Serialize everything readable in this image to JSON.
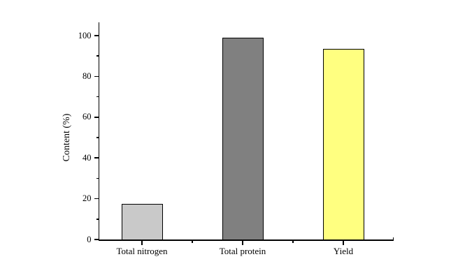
{
  "chart_data": {
    "type": "bar",
    "categories": [
      "Total nitrogen",
      "Total protein",
      "Yield"
    ],
    "values": [
      17.3,
      99,
      93.5
    ],
    "bar_colors": [
      "#c9c9c9",
      "#808080",
      "#ffff80"
    ],
    "bar_border_color": "#000000",
    "ylabel": "Content (%)",
    "yticks": [
      0,
      20,
      40,
      60,
      80,
      100
    ],
    "minor_yticks": [
      10,
      30,
      50,
      70,
      90
    ],
    "ylim": [
      0,
      106.5
    ],
    "grid": false,
    "legend": false,
    "axis_color": "#000000",
    "background_color": "#ffffff"
  }
}
